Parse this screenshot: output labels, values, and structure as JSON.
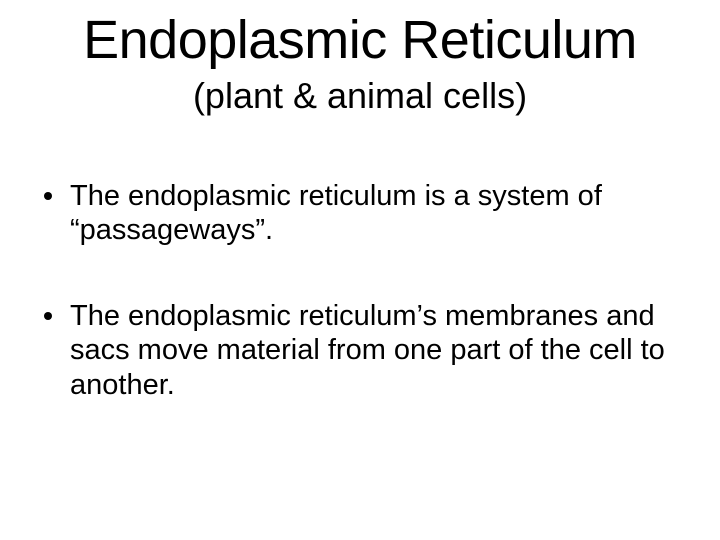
{
  "background_color": "#ffffff",
  "text_color": "#000000",
  "font_family": "Arial",
  "title": {
    "text": "Endoplasmic Reticulum",
    "fontsize": 54,
    "weight": 400,
    "align": "center"
  },
  "subtitle": {
    "text": "(plant & animal cells)",
    "fontsize": 36,
    "weight": 400,
    "align": "center"
  },
  "bullets": {
    "fontsize": 29,
    "marker": "disc",
    "marker_color": "#000000",
    "items": [
      "The endoplasmic reticulum is a system of “passageways”.",
      "The endoplasmic reticulum’s membranes and sacs move material from one part of the cell to another."
    ]
  }
}
